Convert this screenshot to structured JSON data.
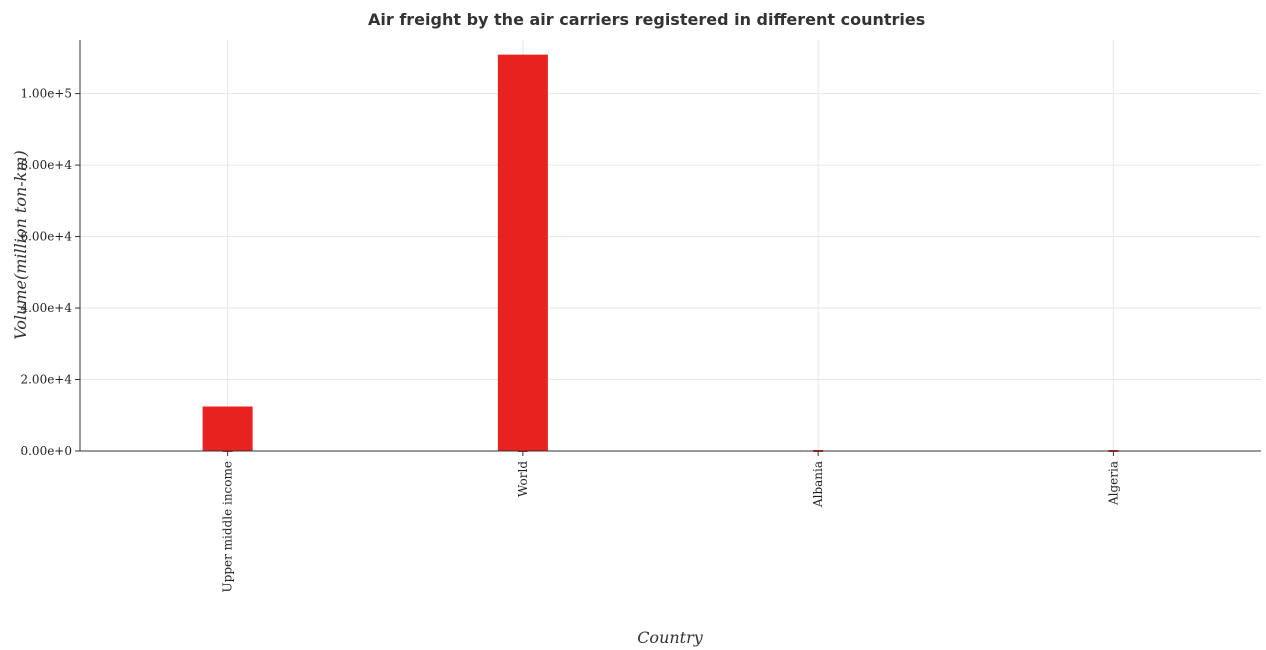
{
  "chart_data": {
    "type": "bar",
    "title": "Air freight by the air carriers registered in different countries",
    "xlabel": "Country",
    "ylabel": "Volume(million ton-km)",
    "categories": [
      "Upper middle income",
      "World",
      "Albania",
      "Algeria"
    ],
    "values": [
      12450,
      110900,
      0.1,
      18
    ],
    "ylim": [
      0,
      115000
    ],
    "yticks": [
      0,
      20000,
      40000,
      60000,
      80000,
      100000
    ],
    "ytick_labels": [
      "0.00e+0",
      "2.00e+4",
      "4.00e+4",
      "6.00e+4",
      "8.00e+4",
      "1.00e+5"
    ],
    "bar_color": "#e8231f",
    "grid": true
  }
}
